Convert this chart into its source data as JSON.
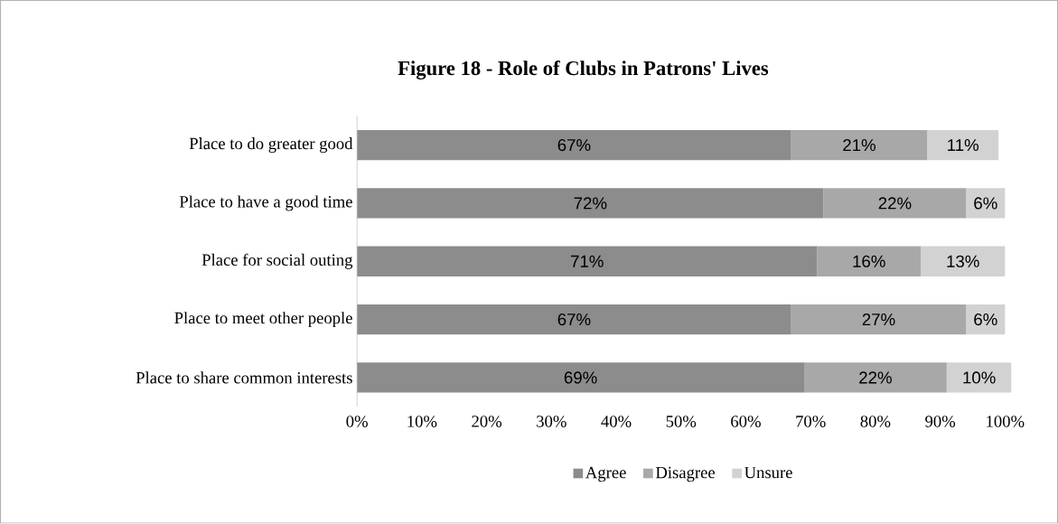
{
  "chart_data": {
    "type": "bar",
    "title": "Figure 18 - Role of Clubs in Patrons' Lives",
    "orientation": "horizontal",
    "stacked": true,
    "categories": [
      "Place to do greater good",
      "Place to have a good time",
      "Place for social outing",
      "Place to meet other people",
      "Place to share common interests"
    ],
    "series": [
      {
        "name": "Agree",
        "color": "#8c8c8c",
        "values": [
          67,
          72,
          71,
          67,
          69
        ],
        "value_labels": [
          "67%",
          "72%",
          "71%",
          "67%",
          "69%"
        ]
      },
      {
        "name": "Disagree",
        "color": "#a8a8a8",
        "values": [
          21,
          22,
          16,
          27,
          22
        ],
        "value_labels": [
          "21%",
          "22%",
          "16%",
          "27%",
          "22%"
        ]
      },
      {
        "name": "Unsure",
        "color": "#d2d2d2",
        "values": [
          11,
          6,
          13,
          6,
          10
        ],
        "value_labels": [
          "11%",
          "6%",
          "13%",
          "6%",
          "10%"
        ]
      }
    ],
    "xlim": [
      0,
      101
    ],
    "xticks": [
      {
        "value": 0,
        "label": "0%"
      },
      {
        "value": 10,
        "label": "10%"
      },
      {
        "value": 20,
        "label": "20%"
      },
      {
        "value": 30,
        "label": "30%"
      },
      {
        "value": 40,
        "label": "40%"
      },
      {
        "value": 50,
        "label": "50%"
      },
      {
        "value": 60,
        "label": "60%"
      },
      {
        "value": 70,
        "label": "70%"
      },
      {
        "value": 80,
        "label": "80%"
      },
      {
        "value": 90,
        "label": "90%"
      },
      {
        "value": 100,
        "label": "100%"
      }
    ],
    "legend": "bottom"
  }
}
